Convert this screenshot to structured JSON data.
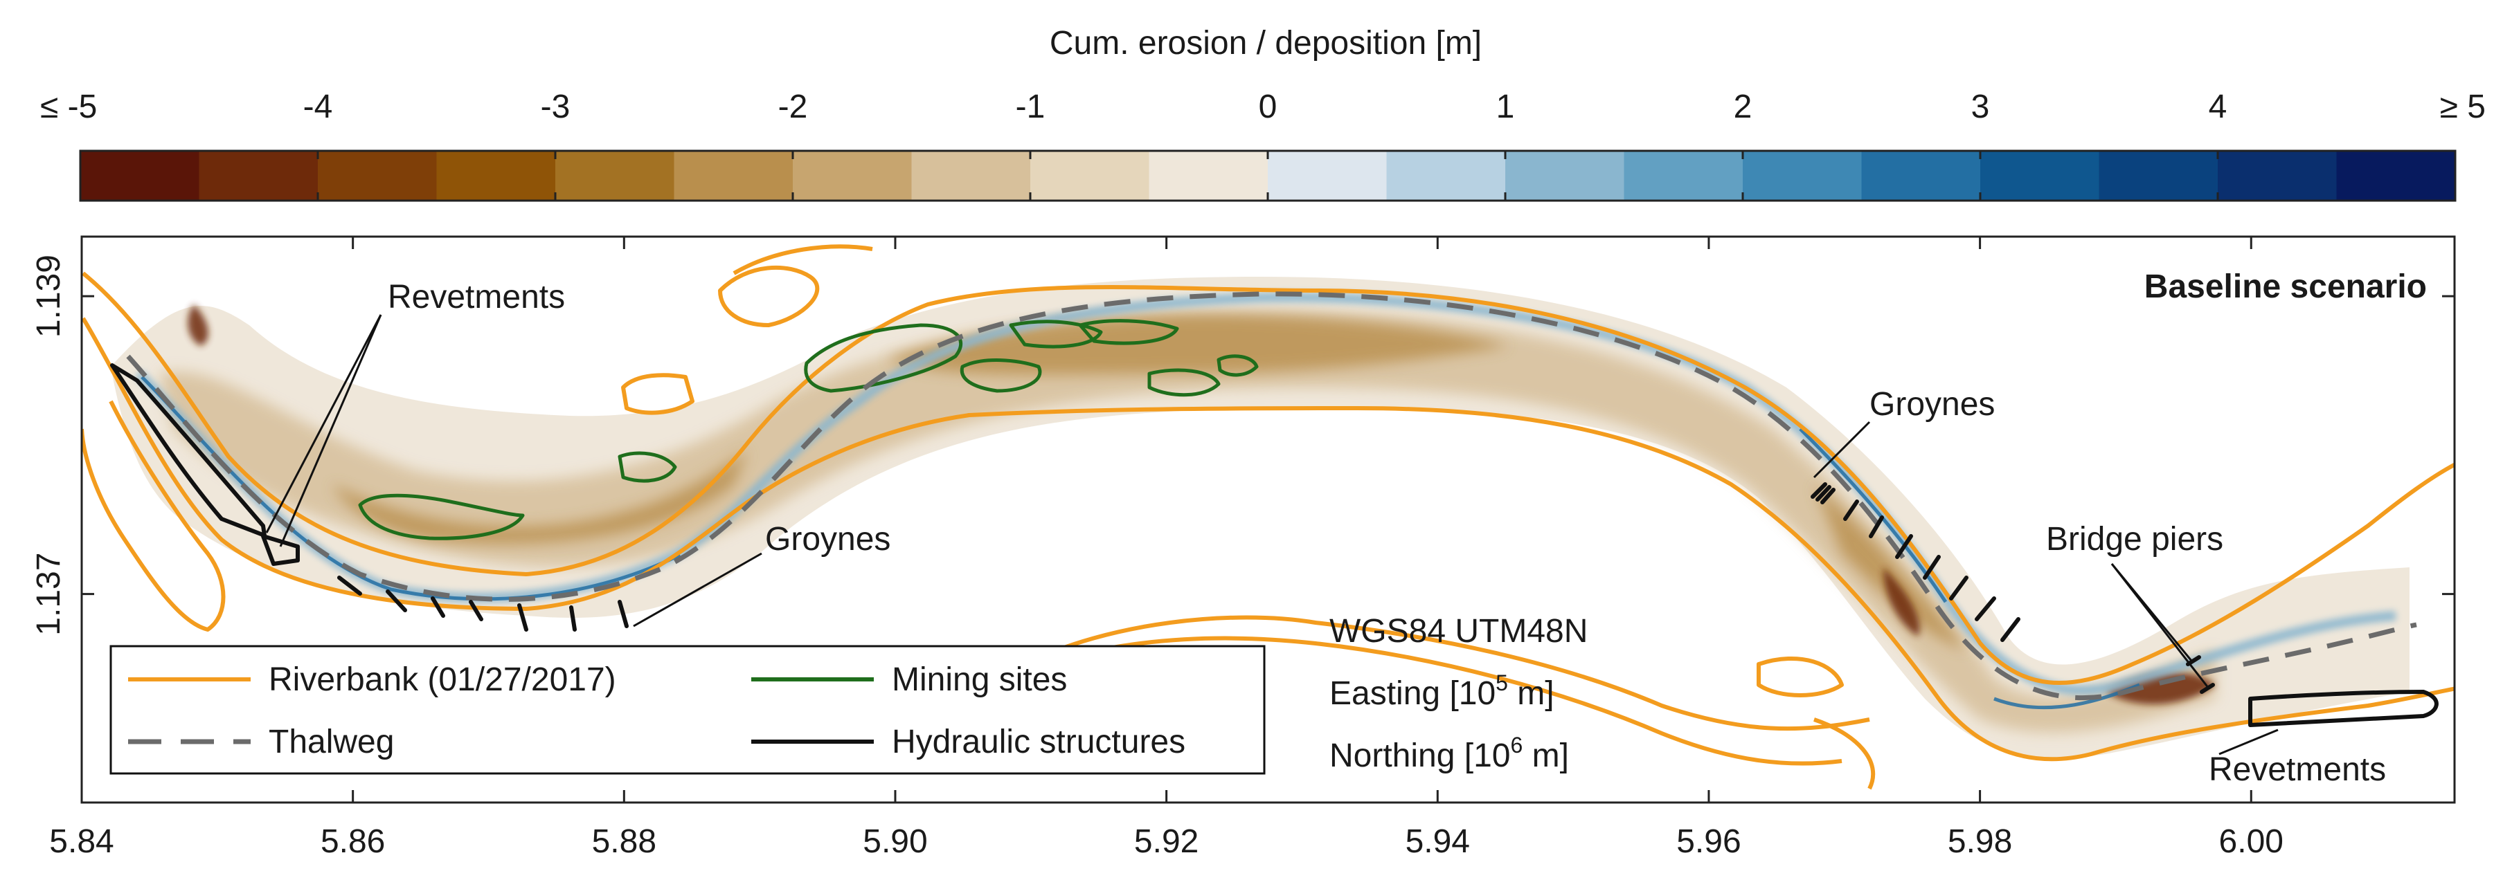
{
  "colorbar": {
    "title": "Cum. erosion / deposition [m]",
    "tick_labels": [
      "≤ -5",
      "-4",
      "-3",
      "-2",
      "-1",
      "0",
      "1",
      "2",
      "3",
      "4",
      "≥ 5"
    ],
    "tick_values": [
      -5,
      -4,
      -3,
      -2,
      -1,
      0,
      1,
      2,
      3,
      4,
      5
    ],
    "bin_width": 0.5,
    "colors": [
      "#5a1508",
      "#6e2a0a",
      "#7f3f08",
      "#8f5407",
      "#a37223",
      "#b98f4d",
      "#c7a56f",
      "#d7c09b",
      "#e5d6bb",
      "#efe7da",
      "#dde6ee",
      "#b7d1e2",
      "#8ab6cf",
      "#62a0c2",
      "#3e88b4",
      "#236fa3",
      "#0f578f",
      "#0a427e",
      "#0a2f6e",
      "#071a5e"
    ]
  },
  "map": {
    "scenario_label": "Baseline scenario",
    "x_ticks": [
      5.84,
      5.86,
      5.88,
      5.9,
      5.92,
      5.94,
      5.96,
      5.98,
      6.0
    ],
    "x_tick_labels": [
      "5.84",
      "5.86",
      "5.88",
      "5.90",
      "5.92",
      "5.94",
      "5.96",
      "5.98",
      "6.00"
    ],
    "y_ticks": [
      1.137,
      1.139
    ],
    "y_tick_labels": [
      "1.137",
      "1.139"
    ],
    "xlim": [
      5.84,
      6.015
    ],
    "ylim": [
      1.1356,
      1.1394
    ],
    "projection_lines": [
      "WGS84 UTM48N",
      "Easting [10",
      "5",
      " m]",
      "Northing [10",
      "6",
      " m]"
    ]
  },
  "annotations": {
    "revetments_left": "Revetments",
    "groynes_left": "Groynes",
    "groynes_right": "Groynes",
    "bridge_piers": "Bridge piers",
    "revetments_right": "Revetments"
  },
  "legend": {
    "riverbank": {
      "label": "Riverbank (01/27/2017)",
      "color": "#f39c1e"
    },
    "mining": {
      "label": "Mining sites",
      "color": "#1f6e1c"
    },
    "thalweg": {
      "label": "Thalweg",
      "color": "#6b6b6b"
    },
    "hydraulic": {
      "label": "Hydraulic structures",
      "color": "#111111"
    }
  }
}
